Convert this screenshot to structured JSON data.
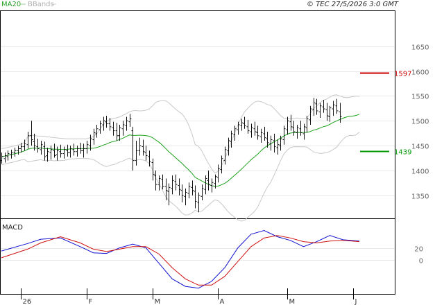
{
  "header": {
    "legend_ma": "MA20",
    "legend_bb": "BBands",
    "copyright": "© TEC 27/5/2026 3:0 GMT"
  },
  "colors": {
    "ma": "#1aa11a",
    "bands": "#c8c8c8",
    "price": "#111111",
    "macd": "#1010d0",
    "signal": "#d01010",
    "resistance": "#cc0000",
    "support": "#009900",
    "grid": "#e8e8e8",
    "axis": "#000000"
  },
  "chart_data": [
    {
      "type": "line",
      "name": "price-panel",
      "y_ticks": [
        "1650",
        "1600",
        "1550",
        "1500",
        "1450",
        "1400",
        "1350"
      ],
      "y_tick_values": [
        1650,
        1600,
        1550,
        1500,
        1450,
        1400,
        1350
      ],
      "ylim": [
        1308,
        1715
      ],
      "x_labels": [
        "26",
        "F",
        "M",
        "A",
        "M",
        "J"
      ],
      "x_label_index": [
        6,
        26,
        46,
        66,
        87,
        107
      ],
      "x_count": 110,
      "levels": [
        {
          "label": "1597",
          "value": 1597,
          "role": "resistance"
        },
        {
          "label": "1439",
          "value": 1439,
          "role": "support"
        }
      ],
      "bars": [
        [
          1420,
          1436,
          1414,
          1428
        ],
        [
          1424,
          1436,
          1416,
          1430
        ],
        [
          1428,
          1440,
          1420,
          1434
        ],
        [
          1432,
          1442,
          1424,
          1436
        ],
        [
          1436,
          1446,
          1428,
          1440
        ],
        [
          1440,
          1450,
          1432,
          1444
        ],
        [
          1444,
          1456,
          1436,
          1448
        ],
        [
          1448,
          1462,
          1440,
          1454
        ],
        [
          1452,
          1478,
          1444,
          1470
        ],
        [
          1470,
          1500,
          1450,
          1462
        ],
        [
          1458,
          1474,
          1440,
          1450
        ],
        [
          1448,
          1464,
          1436,
          1444
        ],
        [
          1442,
          1460,
          1432,
          1452
        ],
        [
          1448,
          1458,
          1420,
          1428
        ],
        [
          1430,
          1446,
          1418,
          1438
        ],
        [
          1436,
          1450,
          1422,
          1442
        ],
        [
          1440,
          1454,
          1426,
          1430
        ],
        [
          1432,
          1448,
          1420,
          1440
        ],
        [
          1438,
          1452,
          1426,
          1434
        ],
        [
          1434,
          1448,
          1424,
          1442
        ],
        [
          1440,
          1452,
          1428,
          1436
        ],
        [
          1436,
          1450,
          1426,
          1444
        ],
        [
          1442,
          1454,
          1430,
          1438
        ],
        [
          1438,
          1450,
          1428,
          1444
        ],
        [
          1444,
          1456,
          1434,
          1440
        ],
        [
          1440,
          1454,
          1426,
          1444
        ],
        [
          1444,
          1460,
          1434,
          1452
        ],
        [
          1450,
          1472,
          1440,
          1464
        ],
        [
          1462,
          1484,
          1452,
          1476
        ],
        [
          1474,
          1492,
          1466,
          1484
        ],
        [
          1482,
          1500,
          1474,
          1494
        ],
        [
          1492,
          1508,
          1480,
          1500
        ],
        [
          1498,
          1510,
          1486,
          1494
        ],
        [
          1494,
          1506,
          1480,
          1488
        ],
        [
          1486,
          1498,
          1470,
          1480
        ],
        [
          1480,
          1496,
          1460,
          1470
        ],
        [
          1470,
          1492,
          1460,
          1486
        ],
        [
          1484,
          1500,
          1470,
          1492
        ],
        [
          1490,
          1508,
          1480,
          1500
        ],
        [
          1498,
          1514,
          1488,
          1504
        ],
        [
          1480,
          1488,
          1400,
          1420
        ],
        [
          1420,
          1460,
          1410,
          1440
        ],
        [
          1440,
          1466,
          1430,
          1450
        ],
        [
          1448,
          1462,
          1430,
          1438
        ],
        [
          1436,
          1450,
          1420,
          1430
        ],
        [
          1428,
          1440,
          1408,
          1418
        ],
        [
          1416,
          1424,
          1380,
          1392
        ],
        [
          1390,
          1400,
          1360,
          1372
        ],
        [
          1372,
          1390,
          1360,
          1384
        ],
        [
          1382,
          1392,
          1362,
          1368
        ],
        [
          1368,
          1384,
          1340,
          1360
        ],
        [
          1358,
          1374,
          1330,
          1366
        ],
        [
          1364,
          1390,
          1352,
          1380
        ],
        [
          1378,
          1392,
          1360,
          1372
        ],
        [
          1370,
          1384,
          1350,
          1362
        ],
        [
          1360,
          1372,
          1336,
          1350
        ],
        [
          1348,
          1364,
          1330,
          1356
        ],
        [
          1354,
          1376,
          1344,
          1368
        ],
        [
          1366,
          1380,
          1350,
          1360
        ],
        [
          1358,
          1370,
          1324,
          1338
        ],
        [
          1336,
          1356,
          1316,
          1350
        ],
        [
          1348,
          1372,
          1340,
          1364
        ],
        [
          1362,
          1390,
          1352,
          1384
        ],
        [
          1380,
          1400,
          1360,
          1372
        ],
        [
          1370,
          1384,
          1356,
          1376
        ],
        [
          1374,
          1392,
          1364,
          1388
        ],
        [
          1386,
          1412,
          1376,
          1404
        ],
        [
          1402,
          1430,
          1394,
          1424
        ],
        [
          1420,
          1448,
          1412,
          1442
        ],
        [
          1440,
          1466,
          1430,
          1460
        ],
        [
          1458,
          1480,
          1446,
          1474
        ],
        [
          1472,
          1490,
          1460,
          1484
        ],
        [
          1482,
          1498,
          1472,
          1492
        ],
        [
          1490,
          1504,
          1480,
          1496
        ],
        [
          1494,
          1508,
          1484,
          1490
        ],
        [
          1488,
          1502,
          1474,
          1480
        ],
        [
          1478,
          1494,
          1466,
          1486
        ],
        [
          1484,
          1498,
          1470,
          1478
        ],
        [
          1476,
          1490,
          1462,
          1470
        ],
        [
          1468,
          1484,
          1456,
          1476
        ],
        [
          1474,
          1488,
          1460,
          1466
        ],
        [
          1464,
          1478,
          1446,
          1456
        ],
        [
          1454,
          1470,
          1440,
          1462
        ],
        [
          1460,
          1474,
          1436,
          1448
        ],
        [
          1446,
          1462,
          1432,
          1452
        ],
        [
          1450,
          1470,
          1440,
          1464
        ],
        [
          1462,
          1490,
          1452,
          1484
        ],
        [
          1482,
          1508,
          1472,
          1500
        ],
        [
          1498,
          1512,
          1480,
          1488
        ],
        [
          1486,
          1500,
          1470,
          1478
        ],
        [
          1476,
          1492,
          1464,
          1486
        ],
        [
          1484,
          1500,
          1470,
          1476
        ],
        [
          1474,
          1494,
          1462,
          1488
        ],
        [
          1486,
          1510,
          1476,
          1504
        ],
        [
          1502,
          1530,
          1492,
          1524
        ],
        [
          1522,
          1546,
          1510,
          1536
        ],
        [
          1534,
          1544,
          1512,
          1520
        ],
        [
          1518,
          1536,
          1506,
          1530
        ],
        [
          1528,
          1542,
          1516,
          1524
        ],
        [
          1522,
          1536,
          1500,
          1510
        ],
        [
          1508,
          1530,
          1498,
          1526
        ],
        [
          1524,
          1540,
          1510,
          1532
        ],
        [
          1530,
          1544,
          1514,
          1520
        ],
        [
          1518,
          1536,
          1496,
          1508
        ]
      ]
    },
    {
      "type": "line",
      "name": "macd-panel",
      "title": "MACD",
      "y_ticks": [
        "20",
        "0"
      ],
      "y_tick_values": [
        20,
        0
      ],
      "ylim": [
        -52,
        62
      ],
      "x_count": 110,
      "series": [
        {
          "name": "MACD",
          "color_key": "macd",
          "points": [
            [
              0,
              15
            ],
            [
              8,
              27
            ],
            [
              12,
              34
            ],
            [
              18,
              36
            ],
            [
              24,
              22
            ],
            [
              28,
              12
            ],
            [
              32,
              11
            ],
            [
              36,
              20
            ],
            [
              40,
              26
            ],
            [
              44,
              20
            ],
            [
              48,
              -5
            ],
            [
              52,
              -30
            ],
            [
              56,
              -42
            ],
            [
              60,
              -45
            ],
            [
              64,
              -34
            ],
            [
              68,
              -12
            ],
            [
              72,
              20
            ],
            [
              76,
              42
            ],
            [
              80,
              48
            ],
            [
              84,
              38
            ],
            [
              88,
              32
            ],
            [
              92,
              22
            ],
            [
              96,
              30
            ],
            [
              100,
              40
            ],
            [
              104,
              33
            ],
            [
              109,
              31
            ]
          ]
        },
        {
          "name": "Signal",
          "color_key": "signal",
          "points": [
            [
              0,
              4
            ],
            [
              8,
              18
            ],
            [
              12,
              28
            ],
            [
              18,
              38
            ],
            [
              24,
              28
            ],
            [
              28,
              18
            ],
            [
              32,
              14
            ],
            [
              36,
              18
            ],
            [
              40,
              22
            ],
            [
              44,
              22
            ],
            [
              48,
              10
            ],
            [
              52,
              -12
            ],
            [
              56,
              -30
            ],
            [
              60,
              -40
            ],
            [
              64,
              -40
            ],
            [
              68,
              -26
            ],
            [
              72,
              -2
            ],
            [
              76,
              22
            ],
            [
              80,
              36
            ],
            [
              84,
              40
            ],
            [
              88,
              36
            ],
            [
              92,
              30
            ],
            [
              96,
              28
            ],
            [
              100,
              31
            ],
            [
              104,
              32
            ],
            [
              109,
              30
            ]
          ]
        }
      ]
    }
  ]
}
